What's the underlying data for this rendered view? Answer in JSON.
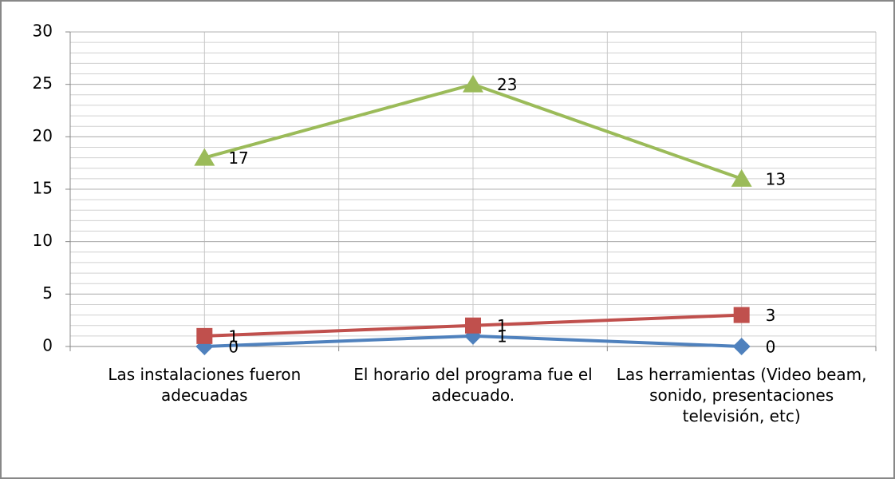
{
  "chart_data": {
    "type": "line",
    "stacked": true,
    "categories": [
      "Las instalaciones fueron adecuadas",
      "El horario del programa fue el adecuado.",
      "Las herramientas (Video beam, sonido, presentaciones televisión, etc)"
    ],
    "series": [
      {
        "color": "#4f81bd",
        "marker": "diamond",
        "values": [
          0,
          1,
          0
        ]
      },
      {
        "color": "#c0504d",
        "marker": "square",
        "values": [
          1,
          1,
          3
        ]
      },
      {
        "color": "#9bbb59",
        "marker": "triangle",
        "values": [
          17,
          23,
          13
        ]
      }
    ],
    "ylim": [
      0,
      30
    ],
    "yticks": [
      0,
      5,
      10,
      15,
      20,
      25,
      30
    ],
    "grid": true,
    "yminor_step": 1,
    "data_labels": true
  }
}
